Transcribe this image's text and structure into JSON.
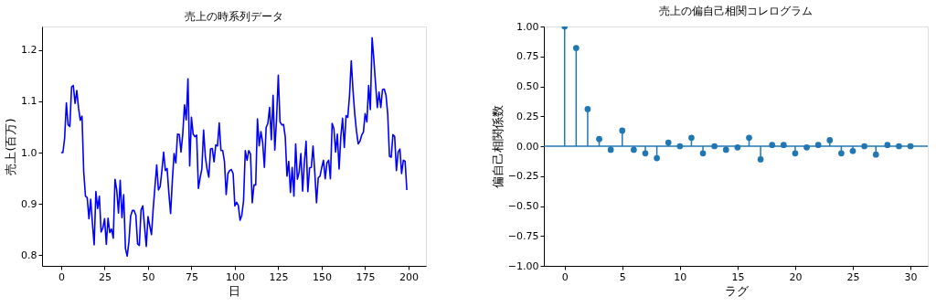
{
  "chart_data": [
    {
      "type": "line",
      "title": "売上の時系列データ",
      "xlabel": "日",
      "ylabel": "売上(百万)",
      "color": "#0000ff",
      "grid": false,
      "x": [
        0,
        1,
        2,
        3,
        4,
        5,
        6,
        7,
        8,
        9,
        10,
        11,
        12,
        13,
        14,
        15,
        16,
        17,
        18,
        19,
        20,
        21,
        22,
        23,
        24,
        25,
        26,
        27,
        28,
        29,
        30,
        31,
        32,
        33,
        34,
        35,
        36,
        37,
        38,
        39,
        40,
        41,
        42,
        43,
        44,
        45,
        46,
        47,
        49,
        50,
        51,
        52,
        53,
        55,
        56,
        57,
        58,
        59,
        60,
        61,
        62,
        63,
        64,
        65,
        66,
        67,
        68,
        69,
        70,
        71,
        72,
        73,
        74,
        75,
        76,
        77,
        78,
        79,
        80,
        81,
        82,
        83,
        84,
        85,
        86,
        87,
        88,
        89,
        90,
        91,
        92,
        93,
        94,
        95,
        96,
        97,
        98,
        99,
        100,
        101,
        102,
        103,
        104,
        105,
        106,
        107,
        108,
        109,
        110,
        111,
        112,
        113,
        114,
        115,
        116,
        117,
        118,
        119,
        120,
        121,
        122,
        123,
        124,
        125,
        126,
        127,
        128,
        129,
        130,
        131,
        132,
        133,
        134,
        135,
        136,
        137,
        138,
        139,
        140,
        141,
        142,
        143,
        144,
        145,
        146,
        147,
        148,
        149,
        150,
        151,
        152,
        153,
        154,
        155,
        156,
        157,
        158,
        159,
        160,
        161,
        162,
        163,
        164,
        165,
        166,
        167,
        168,
        169,
        170,
        171,
        172,
        173,
        174,
        175,
        176,
        177,
        178,
        179,
        180,
        181,
        182,
        183,
        184,
        185,
        186,
        187,
        188,
        189,
        190,
        191,
        192,
        193,
        194,
        195,
        196,
        197,
        198,
        199
      ],
      "values": [
        1.0,
        1.0,
        1.028,
        1.097,
        1.054,
        1.051,
        1.128,
        1.131,
        1.096,
        1.121,
        1.087,
        1.063,
        1.071,
        0.962,
        0.915,
        0.912,
        0.871,
        0.909,
        0.862,
        0.82,
        0.924,
        0.891,
        0.915,
        0.845,
        0.853,
        0.871,
        0.821,
        0.872,
        0.844,
        0.851,
        0.833,
        0.948,
        0.927,
        0.882,
        0.946,
        0.873,
        0.918,
        0.813,
        0.798,
        0.826,
        0.876,
        0.887,
        0.887,
        0.878,
        0.822,
        0.819,
        0.888,
        0.896,
        0.817,
        0.875,
        0.857,
        0.84,
        0.891,
        0.976,
        0.927,
        0.934,
        0.965,
        1.001,
        0.965,
        0.969,
        0.921,
        0.881,
        0.945,
        0.998,
        0.98,
        1.036,
        1.035,
        1.001,
        1.036,
        1.093,
        1.064,
        1.144,
        0.974,
        1.069,
        1.036,
        1.031,
        1.034,
        0.93,
        0.951,
        0.968,
        1.044,
        0.992,
        0.968,
        0.952,
        1.007,
        1.008,
        0.982,
        1.015,
        1.013,
        1.058,
        1.004,
        1.004,
        0.983,
        0.918,
        0.959,
        0.965,
        0.967,
        0.959,
        0.896,
        0.903,
        0.897,
        0.868,
        0.878,
        0.906,
        1.004,
        0.985,
        1.004,
        0.997,
        0.902,
        0.937,
        0.937,
        1.066,
        1.013,
        1.041,
        1.02,
        0.971,
        1.049,
        1.057,
        1.088,
        1.025,
        1.112,
        1.005,
        1.066,
        1.151,
        1.06,
        1.054,
        1.055,
        1.031,
        0.954,
        0.983,
        0.922,
        0.971,
        0.915,
        1.017,
        0.948,
        0.962,
        0.998,
        0.925,
        0.98,
        1.022,
        0.924,
        0.97,
        0.971,
        1.013,
        0.962,
        0.902,
        0.951,
        0.954,
        0.971,
        0.985,
        0.949,
        0.98,
        0.985,
        0.949,
        1.057,
        1.047,
        1.001,
        1.036,
        0.968,
        1.031,
        1.067,
        1.01,
        1.072,
        1.069,
        1.111,
        1.179,
        1.122,
        1.076,
        1.042,
        1.017,
        1.022,
        1.034,
        1.04,
        1.076,
        1.06,
        1.131,
        1.084,
        1.224,
        1.182,
        1.134,
        1.088,
        1.118,
        1.088,
        1.123,
        1.124,
        1.112,
        1.075,
        0.993,
        0.991,
        1.035,
        1.031,
        0.965,
        1.001,
        1.007,
        0.959,
        0.985,
        0.983,
        0.927
      ],
      "xlim": [
        -11,
        210
      ],
      "xticks": [
        0,
        25,
        50,
        75,
        100,
        125,
        150,
        175,
        200
      ],
      "ylim": [
        0.779,
        1.246
      ],
      "yticks": [
        {
          "value": 0.8,
          "label": "0.8"
        },
        {
          "value": 0.9,
          "label": "0.9"
        },
        {
          "value": 1.0,
          "label": "1.0"
        },
        {
          "value": 1.1,
          "label": "1.1"
        },
        {
          "value": 1.2,
          "label": "1.2"
        }
      ]
    },
    {
      "type": "lollipop",
      "title": "売上の偏自己相関コレログラム",
      "xlabel": "ラグ",
      "ylabel": "偏自己相関係数",
      "color": "#1f77b4",
      "marker": "circle",
      "grid": false,
      "x": [
        0,
        1,
        2,
        3,
        4,
        5,
        6,
        7,
        8,
        9,
        10,
        11,
        12,
        13,
        14,
        15,
        16,
        17,
        18,
        19,
        20,
        21,
        22,
        23,
        24,
        25,
        26,
        27,
        28,
        29,
        30
      ],
      "values": [
        1.0,
        0.82,
        0.31,
        0.06,
        -0.03,
        0.13,
        -0.03,
        -0.06,
        -0.1,
        0.03,
        0.0,
        0.07,
        -0.06,
        0.0,
        -0.03,
        -0.01,
        0.07,
        -0.11,
        0.01,
        0.01,
        -0.06,
        -0.01,
        0.01,
        0.05,
        -0.06,
        -0.04,
        0.0,
        -0.07,
        0.01,
        0.0,
        0.0
      ],
      "ref_lines": [
        {
          "axis": "y",
          "value": 0,
          "color": "#1f77b4"
        }
      ],
      "xlim": [
        -1.8,
        31.5
      ],
      "xticks": [
        0,
        5,
        10,
        15,
        20,
        25,
        30
      ],
      "ylim": [
        -1.0,
        1.0
      ],
      "yticks": [
        {
          "value": -1.0,
          "label": "−1.00"
        },
        {
          "value": -0.75,
          "label": "−0.75"
        },
        {
          "value": -0.5,
          "label": "−0.50"
        },
        {
          "value": -0.25,
          "label": "−0.25"
        },
        {
          "value": 0.0,
          "label": "0.00"
        },
        {
          "value": 0.25,
          "label": "0.25"
        },
        {
          "value": 0.5,
          "label": "0.50"
        },
        {
          "value": 0.75,
          "label": "0.75"
        },
        {
          "value": 1.0,
          "label": "1.00"
        }
      ]
    }
  ]
}
